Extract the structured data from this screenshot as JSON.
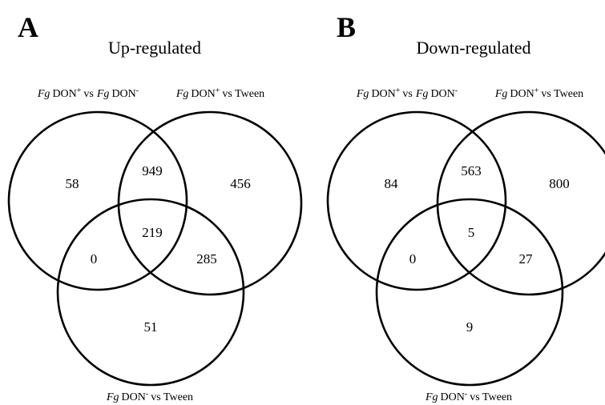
{
  "panels": [
    {
      "letter": "A",
      "title": "Up-regulated",
      "sets": [
        {
          "label": [
            {
              "text": "Fg",
              "style": "italic"
            },
            {
              "text": "DON"
            },
            {
              "text": "+",
              "style": "sup"
            },
            {
              "text": "vs"
            },
            {
              "text": "Fg",
              "style": "italic"
            },
            {
              "text": "DON"
            },
            {
              "text": "-",
              "style": "sup"
            }
          ]
        },
        {
          "label": [
            {
              "text": "Fg",
              "style": "italic"
            },
            {
              "text": "DON"
            },
            {
              "text": "+",
              "style": "sup"
            },
            {
              "text": "vs Tween"
            }
          ]
        },
        {
          "label": [
            {
              "text": "Fg",
              "style": "italic"
            },
            {
              "text": "DON"
            },
            {
              "text": "-",
              "style": "sup"
            },
            {
              "text": "vs Tween"
            }
          ]
        }
      ],
      "regions": [
        58,
        949,
        456,
        219,
        0,
        285,
        51
      ]
    },
    {
      "letter": "B",
      "title": "Down-regulated",
      "sets": [
        {
          "label": [
            {
              "text": "Fg",
              "style": "italic"
            },
            {
              "text": "DON"
            },
            {
              "text": "+",
              "style": "sup"
            },
            {
              "text": "vs"
            },
            {
              "text": "Fg",
              "style": "italic"
            },
            {
              "text": "DON"
            },
            {
              "text": "-",
              "style": "sup"
            }
          ]
        },
        {
          "label": [
            {
              "text": "Fg",
              "style": "italic"
            },
            {
              "text": "DON"
            },
            {
              "text": "+",
              "style": "sup"
            },
            {
              "text": "vs Tween"
            }
          ]
        },
        {
          "label": [
            {
              "text": "Fg",
              "style": "italic"
            },
            {
              "text": "DON"
            },
            {
              "text": "-",
              "style": "sup"
            },
            {
              "text": "vs Tween"
            }
          ]
        }
      ],
      "regions": [
        84,
        563,
        800,
        5,
        0,
        27,
        9
      ]
    }
  ]
}
